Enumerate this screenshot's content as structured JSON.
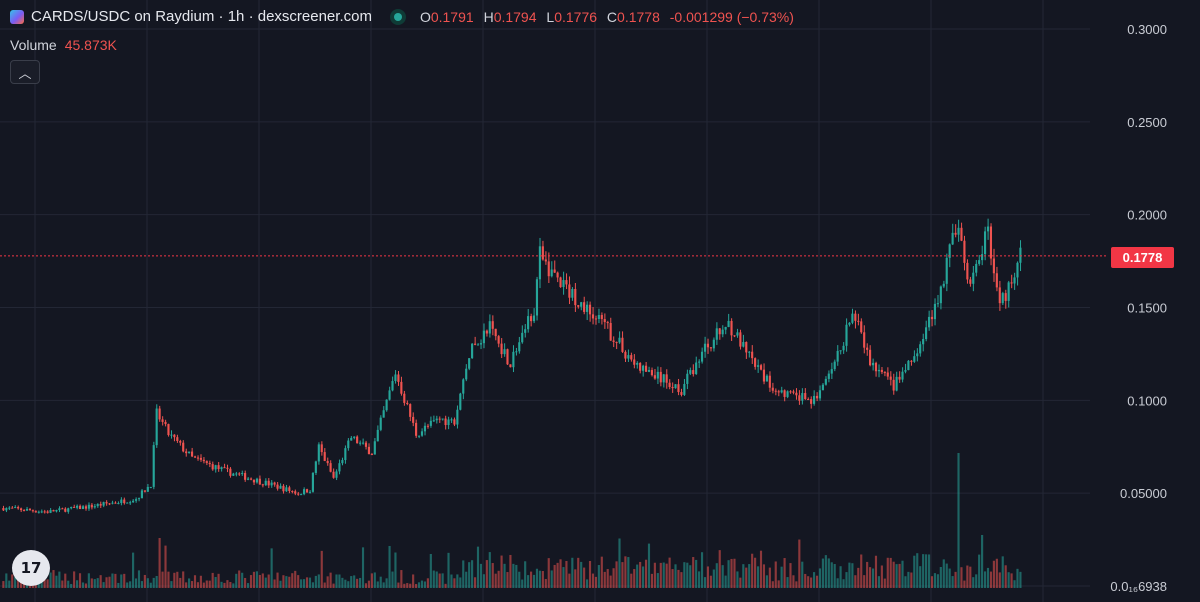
{
  "header": {
    "title": "CARDS/USDC on Raydium · 1h · dexscreener.com",
    "ohlc": [
      {
        "key": "O",
        "value": "0.1791"
      },
      {
        "key": "H",
        "value": "0.1794"
      },
      {
        "key": "L",
        "value": "0.1776"
      },
      {
        "key": "C",
        "value": "0.1778"
      }
    ],
    "change": "-0.001299 (−0.73%)"
  },
  "volume": {
    "label": "Volume",
    "value": "45.873K"
  },
  "price_tag": "0.1778",
  "colors": {
    "up": "#26a69a",
    "down": "#ef5350",
    "background": "#141722",
    "grid": "#232735",
    "last_price": "#f23645"
  },
  "chart_data": {
    "type": "candlestick",
    "title": "CARDS/USDC on Raydium · 1h · dexscreener.com",
    "yticks": [
      "0.3000",
      "0.2500",
      "0.2000",
      "0.1500",
      "0.1000",
      "0.05000",
      "0.0₁₆6938"
    ],
    "ytick_values": [
      0.3,
      0.25,
      0.2,
      0.15,
      0.1,
      0.05,
      0.0
    ],
    "ylim": [
      0.0,
      0.3
    ],
    "last_price": 0.1778,
    "grid": true,
    "series": [
      {
        "x": 0,
        "y": 0.042
      },
      {
        "x": 15,
        "y": 0.04
      },
      {
        "x": 30,
        "y": 0.043
      },
      {
        "x": 45,
        "y": 0.047
      },
      {
        "x": 50,
        "y": 0.055
      },
      {
        "x": 52,
        "y": 0.093
      },
      {
        "x": 56,
        "y": 0.082
      },
      {
        "x": 64,
        "y": 0.069
      },
      {
        "x": 75,
        "y": 0.062
      },
      {
        "x": 90,
        "y": 0.055
      },
      {
        "x": 100,
        "y": 0.05
      },
      {
        "x": 104,
        "y": 0.052
      },
      {
        "x": 107,
        "y": 0.075
      },
      {
        "x": 112,
        "y": 0.058
      },
      {
        "x": 118,
        "y": 0.08
      },
      {
        "x": 125,
        "y": 0.072
      },
      {
        "x": 133,
        "y": 0.115
      },
      {
        "x": 140,
        "y": 0.082
      },
      {
        "x": 148,
        "y": 0.09
      },
      {
        "x": 153,
        "y": 0.088
      },
      {
        "x": 158,
        "y": 0.125
      },
      {
        "x": 165,
        "y": 0.14
      },
      {
        "x": 172,
        "y": 0.12
      },
      {
        "x": 180,
        "y": 0.15
      },
      {
        "x": 182,
        "y": 0.178
      },
      {
        "x": 188,
        "y": 0.165
      },
      {
        "x": 197,
        "y": 0.15
      },
      {
        "x": 205,
        "y": 0.138
      },
      {
        "x": 215,
        "y": 0.118
      },
      {
        "x": 225,
        "y": 0.11
      },
      {
        "x": 230,
        "y": 0.106
      },
      {
        "x": 238,
        "y": 0.128
      },
      {
        "x": 246,
        "y": 0.142
      },
      {
        "x": 252,
        "y": 0.125
      },
      {
        "x": 260,
        "y": 0.108
      },
      {
        "x": 268,
        "y": 0.102
      },
      {
        "x": 275,
        "y": 0.1
      },
      {
        "x": 282,
        "y": 0.118
      },
      {
        "x": 288,
        "y": 0.148
      },
      {
        "x": 294,
        "y": 0.12
      },
      {
        "x": 302,
        "y": 0.108
      },
      {
        "x": 310,
        "y": 0.125
      },
      {
        "x": 318,
        "y": 0.16
      },
      {
        "x": 323,
        "y": 0.195
      },
      {
        "x": 328,
        "y": 0.16
      },
      {
        "x": 334,
        "y": 0.192
      },
      {
        "x": 338,
        "y": 0.15
      },
      {
        "x": 345,
        "y": 0.178
      }
    ]
  }
}
